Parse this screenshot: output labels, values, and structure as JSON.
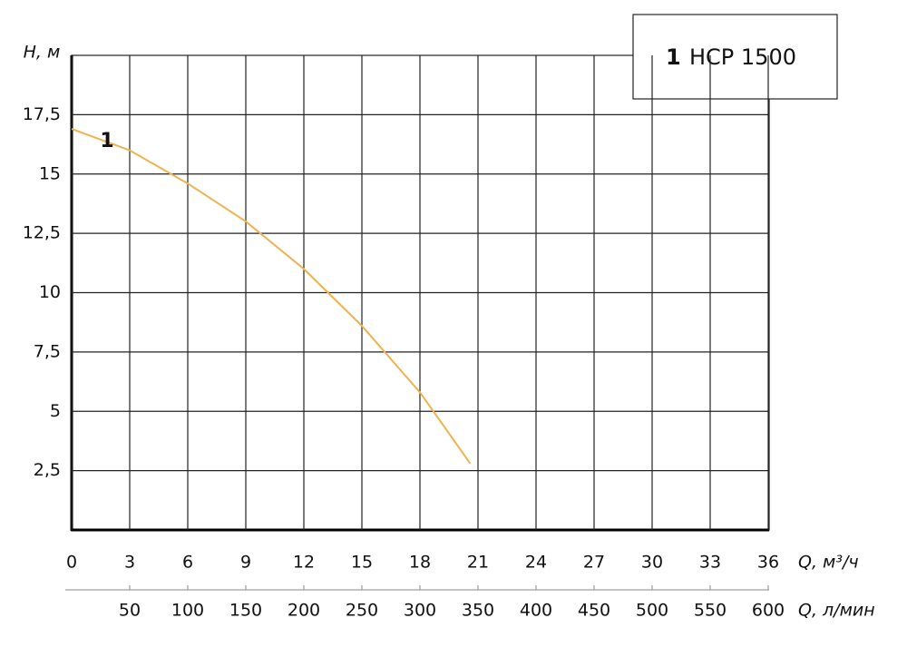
{
  "chart_data": {
    "type": "line",
    "y_label": "H, м",
    "x_label": "Q, м³/ч",
    "x2_label": "Q, л/мин",
    "x": [
      0,
      3,
      6,
      9,
      12,
      15,
      18,
      20.6
    ],
    "series": [
      {
        "name": "НСР 1500",
        "label": "1",
        "color": "#f0b24e",
        "values": [
          16.9,
          16.0,
          14.6,
          13.0,
          11.0,
          8.6,
          5.8,
          2.8
        ]
      }
    ],
    "xlim": [
      0,
      36
    ],
    "xticks": [
      0,
      3,
      6,
      9,
      12,
      15,
      18,
      21,
      24,
      27,
      30,
      33,
      36
    ],
    "ylim": [
      0,
      20
    ],
    "yticks": [
      {
        "value": 2.5,
        "label": "2,5"
      },
      5,
      {
        "value": 7.5,
        "label": "7,5"
      },
      10,
      {
        "value": 12.5,
        "label": "12,5"
      },
      15,
      {
        "value": 17.5,
        "label": "17,5"
      }
    ],
    "x2lim": [
      0,
      600
    ],
    "x2ticks": [
      50,
      100,
      150,
      200,
      250,
      300,
      350,
      400,
      450,
      500,
      550,
      600
    ],
    "grid": true
  }
}
